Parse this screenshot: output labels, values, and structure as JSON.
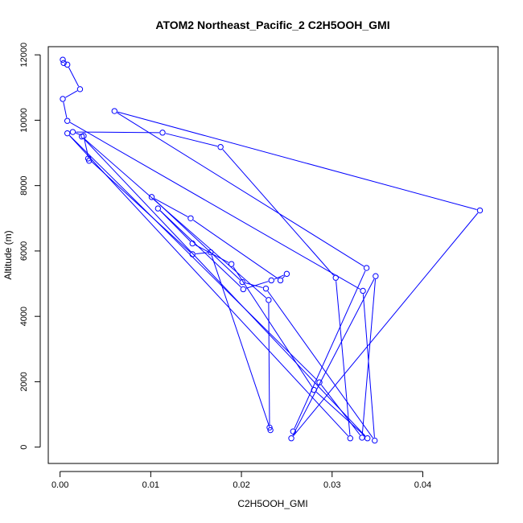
{
  "chart_data": {
    "type": "line",
    "title": "ATOM2 Northeast_Pacific_2 C2H5OOH_GMI",
    "xlabel": "C2H5OOH_GMI",
    "ylabel": "Altitude (m)",
    "xlim": [
      -0.0013,
      0.0483
    ],
    "ylim": [
      -500,
      12250
    ],
    "x_ticks": [
      0.0,
      0.01,
      0.02,
      0.03,
      0.04
    ],
    "x_tick_labels": [
      "0.00",
      "0.01",
      "0.02",
      "0.03",
      "0.04"
    ],
    "y_ticks": [
      0,
      2000,
      4000,
      6000,
      8000,
      10000,
      12000
    ],
    "y_tick_labels": [
      "0",
      "2000",
      "4000",
      "6000",
      "8000",
      "10000",
      "12000"
    ],
    "grid": false,
    "legend": "none",
    "color": "#0000ff",
    "marker": "open-circle",
    "series": [
      {
        "x": [
          0.0003,
          0.0004,
          0.0008,
          0.0022,
          0.0003,
          0.0008,
          0.0334,
          0.0347,
          0.0227,
          0.0201,
          0.0101,
          0.0144,
          0.0243,
          0.025,
          0.0233,
          0.0202,
          0.0108,
          0.0146,
          0.0189,
          0.028,
          0.0339,
          0.0024,
          0.023,
          0.0231,
          0.0232,
          0.0166,
          0.0146,
          0.0031,
          0.0032,
          0.0026,
          0.0014,
          0.0113,
          0.0177,
          0.0304,
          0.032,
          0.0008,
          0.0286,
          0.0333,
          0.0348,
          0.0255,
          0.0463,
          0.006,
          0.0338,
          0.0257
        ],
        "y": [
          11850,
          11750,
          11700,
          10950,
          10650,
          9980,
          4780,
          200,
          4850,
          5050,
          7650,
          7000,
          5100,
          5300,
          5100,
          4830,
          7300,
          6230,
          5600,
          1750,
          270,
          9500,
          4500,
          600,
          520,
          5960,
          5900,
          8830,
          8760,
          9520,
          9640,
          9620,
          9180,
          5180,
          270,
          9600,
          1980,
          290,
          5230,
          270,
          7240,
          10280,
          5480,
          480
        ]
      }
    ]
  }
}
